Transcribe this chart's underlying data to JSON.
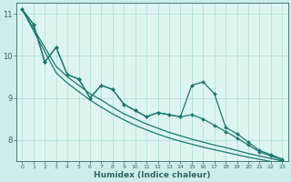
{
  "xlabel": "Humidex (Indice chaleur)",
  "ylabel": "",
  "bg_color": "#cceee8",
  "plot_bg_color": "#ddf5f0",
  "grid_color": "#aaddd8",
  "line_color": "#1a7a6e",
  "axis_color": "#336666",
  "xlim": [
    -0.5,
    23.5
  ],
  "ylim": [
    7.5,
    11.25
  ],
  "xticks": [
    0,
    1,
    2,
    3,
    4,
    5,
    6,
    7,
    8,
    9,
    10,
    11,
    12,
    13,
    14,
    15,
    16,
    17,
    18,
    19,
    20,
    21,
    22,
    23
  ],
  "yticks": [
    8,
    9,
    10,
    11
  ],
  "series_wavy1": [
    11.1,
    10.75,
    9.85,
    10.2,
    9.55,
    9.45,
    9.0,
    9.3,
    9.2,
    8.85,
    8.7,
    8.55,
    8.65,
    8.6,
    8.55,
    9.3,
    9.38,
    9.1,
    8.3,
    8.15,
    7.95,
    7.75,
    7.65,
    7.55
  ],
  "series_wavy2": [
    11.1,
    10.75,
    9.85,
    10.2,
    9.55,
    9.45,
    9.0,
    9.3,
    9.2,
    8.85,
    8.7,
    8.55,
    8.65,
    8.6,
    8.55,
    8.6,
    8.5,
    8.35,
    8.2,
    8.05,
    7.88,
    7.72,
    7.62,
    7.52
  ],
  "series_trend1": [
    11.1,
    10.65,
    10.2,
    9.75,
    9.5,
    9.3,
    9.1,
    8.95,
    8.78,
    8.62,
    8.5,
    8.38,
    8.28,
    8.18,
    8.1,
    8.02,
    7.95,
    7.88,
    7.82,
    7.75,
    7.68,
    7.62,
    7.56,
    7.5
  ],
  "series_trend2": [
    11.1,
    10.6,
    10.1,
    9.6,
    9.35,
    9.15,
    8.95,
    8.78,
    8.62,
    8.48,
    8.35,
    8.24,
    8.14,
    8.05,
    7.97,
    7.9,
    7.83,
    7.77,
    7.71,
    7.65,
    7.59,
    7.54,
    7.49,
    7.44
  ]
}
